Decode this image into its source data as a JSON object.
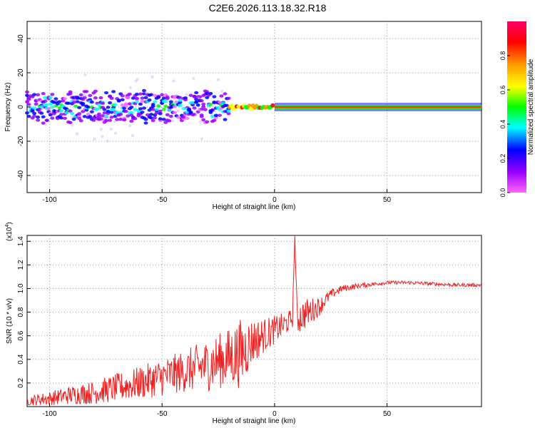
{
  "title": "C2E6.2026.113.18.32.R18",
  "chart_data": [
    {
      "type": "heatmap",
      "xlabel": "Height of straight line (km)",
      "ylabel": "Frequency (Hz)",
      "xlim": [
        -110,
        92
      ],
      "ylim": [
        -50,
        50
      ],
      "xticks": [
        -100,
        -50,
        0,
        50
      ],
      "yticks": [
        -40,
        -20,
        0,
        20,
        40
      ],
      "grid": true,
      "colorbar": {
        "label": "Normalized spectral amplitude",
        "ticks": [
          0.0,
          0.2,
          0.4,
          0.6,
          0.8
        ],
        "range": [
          0,
          1
        ],
        "colors": [
          "#ff66ff",
          "#9900ff",
          "#0000ff",
          "#00ffff",
          "#00ff00",
          "#ffff00",
          "#ff9900",
          "#ff0000",
          "#ff0066"
        ]
      },
      "description_rows": [
        {
          "x_range": [
            -110,
            -20
          ],
          "center_freq": 0,
          "spread_hz": 12,
          "peak_amplitude": 0.5
        },
        {
          "x_range": [
            -20,
            0
          ],
          "center_freq": 0,
          "spread_hz": 4,
          "peak_amplitude": 0.9
        },
        {
          "x_range": [
            0,
            92
          ],
          "center_freq": 0,
          "spread_hz": 2,
          "peak_amplitude": 1.0
        }
      ]
    },
    {
      "type": "line",
      "series_name": "SNR",
      "color": "#ee2222",
      "xlabel": "Height of straight line (km)",
      "ylabel": "SNR (10 * v/v)",
      "yscale_label": "(x10^4)",
      "xlim": [
        -110,
        92
      ],
      "ylim": [
        0,
        1.45
      ],
      "xticks": [
        -100,
        -50,
        0,
        50
      ],
      "yticks": [
        0.2,
        0.4,
        0.6,
        0.8,
        1.0,
        1.2,
        1.4
      ],
      "grid": true,
      "x": [
        -110,
        -100,
        -90,
        -80,
        -70,
        -60,
        -50,
        -40,
        -30,
        -20,
        -15,
        -10,
        -5,
        0,
        5,
        8,
        9,
        10,
        15,
        20,
        25,
        30,
        40,
        50,
        60,
        70,
        80,
        92
      ],
      "y": [
        0.05,
        0.07,
        0.1,
        0.12,
        0.16,
        0.2,
        0.25,
        0.3,
        0.35,
        0.42,
        0.45,
        0.55,
        0.6,
        0.65,
        0.7,
        0.75,
        1.45,
        0.75,
        0.8,
        0.85,
        0.95,
        1.0,
        1.03,
        1.05,
        1.05,
        1.04,
        1.03,
        1.03
      ],
      "noise_amplitude": [
        0.04,
        0.06,
        0.08,
        0.1,
        0.12,
        0.14,
        0.16,
        0.18,
        0.22,
        0.25,
        0.3,
        0.2,
        0.15,
        0.12,
        0.1,
        0.08,
        0.0,
        0.15,
        0.12,
        0.08,
        0.04,
        0.03,
        0.02,
        0.015,
        0.015,
        0.015,
        0.015,
        0.015
      ]
    }
  ]
}
